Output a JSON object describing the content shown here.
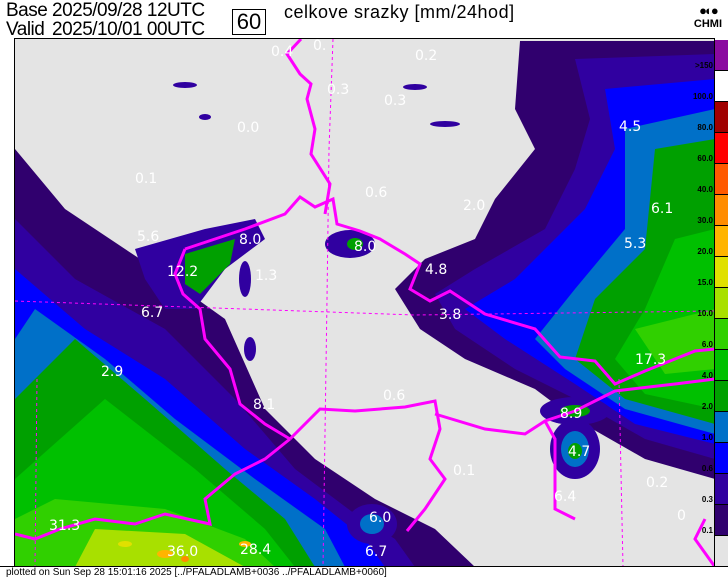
{
  "header": {
    "base_label": "Base",
    "base_value": "2025/09/28 12UTC",
    "valid_label": "Valid",
    "valid_value": "2025/10/01 00UTC",
    "forecast_hour": "60",
    "title": "celkove srazky [mm/24hod]",
    "logo_text": "CHMI"
  },
  "map": {
    "labels": [
      "0.4",
      "0.",
      "0.2",
      "0.3",
      "0.3",
      "0.0",
      "4.5",
      "0.1",
      "0.6",
      "2.0",
      "6.1",
      "5.6",
      "8.0",
      "8.0",
      "5.3",
      "12.2",
      "4.8",
      "1.3",
      "6.7",
      "3.8",
      "17.3",
      "2.9",
      "0.6",
      "8.1",
      "8.9",
      "4.7",
      "0.1",
      "0.2",
      "6.4",
      "31.3",
      "6.0",
      "0",
      "36.0",
      "28.4",
      "6.7"
    ]
  },
  "legend": {
    "labels": [
      ">150",
      "100.0",
      "80.0",
      "60.0",
      "40.0",
      "30.0",
      "20.0",
      "15.0",
      "10.0",
      "6.0",
      "4.0",
      "2.0",
      "1.0",
      "0.6",
      "0.3",
      "0.1"
    ],
    "colors": [
      "#8a0aa0",
      "#ffffff",
      "#a00000",
      "#ff0000",
      "#ff5a00",
      "#ff8c00",
      "#ffb400",
      "#e0e000",
      "#a8e000",
      "#30d000",
      "#00c000",
      "#00a000",
      "#0070c8",
      "#0000ff",
      "#3000a0",
      "#30006e",
      "#e4e4e4"
    ]
  },
  "border_color": "#ff00ff",
  "footer": {
    "text": "plotted on Sun Sep 28 15:01:16 2025 [../PFALADLAMB+0036 ../PFALADLAMB+0060]"
  }
}
